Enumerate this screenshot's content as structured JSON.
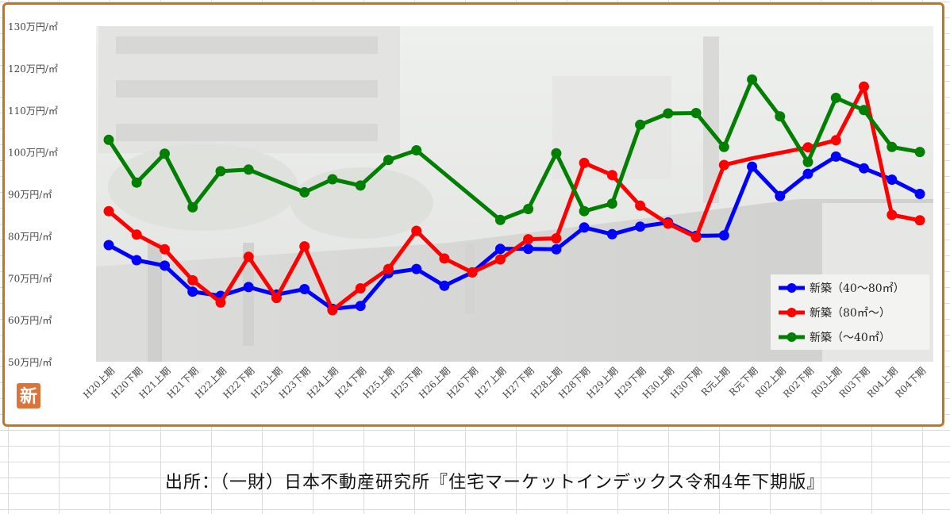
{
  "source": "出所：（一財）日本不動産研究所『住宅マーケットインデックス令和4年下期版』",
  "badge": "新",
  "colors": {
    "frame": "#c8741e",
    "badge": "#d9743a"
  },
  "chart_data": {
    "type": "line",
    "title": "",
    "xlabel": "",
    "ylabel": "",
    "ylim": [
      50,
      130
    ],
    "yticks": [
      50,
      60,
      70,
      80,
      90,
      100,
      110,
      120,
      130
    ],
    "yunit": "万円/㎡",
    "grid": false,
    "legend_position": "bottom-right",
    "categories": [
      "H20上期",
      "H20下期",
      "H21上期",
      "H21下期",
      "H22上期",
      "H22下期",
      "H23上期",
      "H23下期",
      "H24上期",
      "H24下期",
      "H25上期",
      "H25下期",
      "H26上期",
      "H26下期",
      "H27上期",
      "H27下期",
      "H28上期",
      "H28下期",
      "H29上期",
      "H29下期",
      "H30上期",
      "H30下期",
      "R元上期",
      "R元下期",
      "R02上期",
      "R02下期",
      "R03上期",
      "R03下期",
      "R04上期",
      "R04下期"
    ],
    "series": [
      {
        "name": "新築（40～80㎡）",
        "color": "#0000ff",
        "values": [
          77.8,
          74.2,
          72.9,
          66.7,
          65.7,
          67.8,
          66.0,
          67.3,
          62.6,
          63.3,
          71.1,
          72.1,
          68.1,
          71.3,
          76.9,
          76.9,
          76.8,
          82.0,
          80.4,
          82.2,
          83.2,
          80.0,
          80.1,
          96.5,
          89.5,
          94.8,
          98.9,
          96.1,
          93.4,
          90.0
        ],
        "points": [
          true,
          true,
          true,
          true,
          true,
          true,
          true,
          true,
          true,
          true,
          true,
          true,
          true,
          true,
          true,
          true,
          true,
          true,
          true,
          true,
          true,
          true,
          true,
          true,
          true,
          true,
          true,
          true,
          true,
          true
        ]
      },
      {
        "name": "新築（80㎡～）",
        "color": "#ff0000",
        "values": [
          85.9,
          80.3,
          76.8,
          69.4,
          64.1,
          75.0,
          65.2,
          77.5,
          62.3,
          67.5,
          72.1,
          81.2,
          74.6,
          71.3,
          74.4,
          79.2,
          79.4,
          97.4,
          94.5,
          87.2,
          82.9,
          79.7,
          96.9,
          98.5,
          99.8,
          101.1,
          102.8,
          115.6,
          85.0,
          83.7
        ],
        "points": [
          true,
          true,
          true,
          true,
          true,
          true,
          true,
          true,
          true,
          true,
          true,
          true,
          true,
          true,
          true,
          true,
          true,
          true,
          true,
          true,
          true,
          true,
          true,
          false,
          false,
          true,
          true,
          true,
          true,
          true
        ]
      },
      {
        "name": "新築（～40㎡）",
        "color": "#007f00",
        "values": [
          102.9,
          92.7,
          99.6,
          86.8,
          95.4,
          95.8,
          null,
          90.4,
          93.5,
          92.0,
          98.1,
          100.4,
          null,
          null,
          83.8,
          86.4,
          99.7,
          85.9,
          87.7,
          106.5,
          109.2,
          109.3,
          101.2,
          117.3,
          108.5,
          97.6,
          112.9,
          110.0,
          101.2,
          100.0
        ],
        "points": [
          true,
          true,
          true,
          true,
          true,
          true,
          false,
          true,
          true,
          true,
          true,
          true,
          false,
          false,
          true,
          true,
          true,
          true,
          true,
          true,
          true,
          true,
          true,
          true,
          true,
          true,
          true,
          true,
          true,
          true
        ]
      }
    ]
  }
}
